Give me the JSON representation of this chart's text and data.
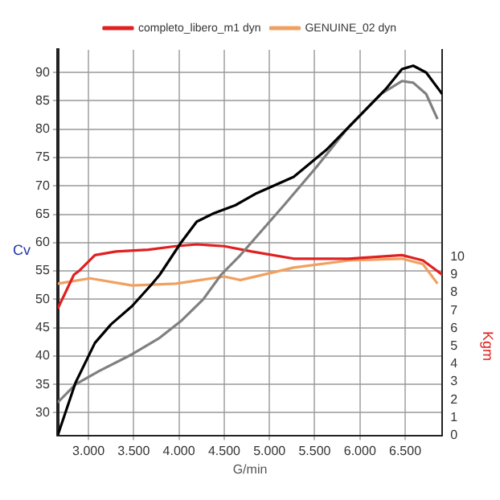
{
  "chart_data": {
    "type": "line",
    "xlabel": "G/min",
    "ylabel": "Cv",
    "y2label": "Kgm",
    "xlim": [
      2660,
      6910
    ],
    "xticks": [
      {
        "value": 3000,
        "label": "3.000"
      },
      {
        "value": 3500,
        "label": "3.500"
      },
      {
        "value": 4000,
        "label": "4.000"
      },
      {
        "value": 4500,
        "label": "4.500"
      },
      {
        "value": 5000,
        "label": "5.000"
      },
      {
        "value": 5500,
        "label": "5.500"
      },
      {
        "value": 6000,
        "label": "6.000"
      },
      {
        "value": 6500,
        "label": "6.500"
      }
    ],
    "ylim": [
      26,
      94
    ],
    "yticks": [
      30,
      35,
      40,
      45,
      50,
      55,
      60,
      65,
      70,
      75,
      80,
      85,
      90
    ],
    "y2lim": [
      0,
      21.6
    ],
    "y2ticks": [
      0,
      1,
      2,
      3,
      4,
      5,
      6,
      7,
      8,
      9,
      10
    ],
    "grid": true,
    "legend": "top",
    "marker": "none",
    "line_style": "solid",
    "series": [
      {
        "color": "#000000",
        "x": [
          2660,
          2857,
          3071,
          3250,
          3482,
          3696,
          3786,
          4018,
          4196,
          4375,
          4625,
          4857,
          5268,
          5625,
          5982,
          6286,
          6464,
          6589,
          6732,
          6910
        ],
        "values": [
          26,
          35.3,
          42.3,
          45.6,
          48.8,
          52.6,
          54.3,
          59.9,
          63.7,
          65.1,
          66.6,
          68.7,
          71.6,
          76.3,
          82.1,
          87.1,
          90.6,
          91.2,
          90,
          86.2
        ]
      },
      {
        "color": "#808080",
        "x": [
          2660,
          2857,
          3125,
          3482,
          3786,
          4018,
          4268,
          4464,
          4679,
          5161,
          5518,
          5875,
          6232,
          6464,
          6589,
          6732,
          6857
        ],
        "values": [
          31.8,
          35,
          37.4,
          40.3,
          43.2,
          46.1,
          50,
          54.3,
          57.8,
          66.6,
          73.3,
          80.4,
          86.2,
          88.5,
          88.2,
          86.2,
          81.8
        ]
      },
      {
        "name": "completo_libero_m1 dyn",
        "color": "#e02020",
        "axis": "y2",
        "x": [
          2660,
          2839,
          2893,
          3071,
          3304,
          3661,
          3964,
          4196,
          4500,
          4804,
          5268,
          5875,
          6464,
          6696,
          6910
        ],
        "values": [
          7.1,
          9.0,
          9.2,
          10.1,
          10.3,
          10.4,
          10.6,
          10.7,
          10.6,
          10.3,
          9.9,
          9.9,
          10.1,
          9.8,
          9.0
        ]
      },
      {
        "name": "GENUINE_02 dyn",
        "color": "#f0a060",
        "axis": "y2",
        "x": [
          2660,
          3018,
          3482,
          3964,
          4500,
          4679,
          5268,
          5875,
          6464,
          6696,
          6857
        ],
        "values": [
          8.5,
          8.8,
          8.4,
          8.5,
          8.9,
          8.7,
          9.4,
          9.8,
          9.9,
          9.6,
          8.5
        ]
      }
    ]
  }
}
